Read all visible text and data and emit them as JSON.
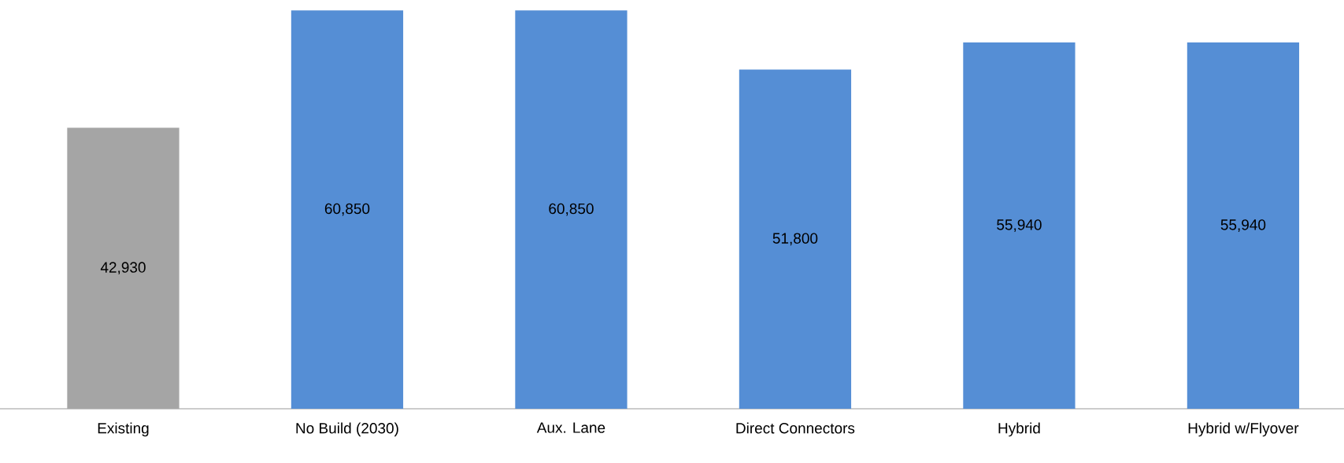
{
  "chart_data": {
    "type": "bar",
    "categories": [
      "Existing",
      "No Build (2030)",
      "Aux. Lane",
      "Direct Connectors",
      "Hybrid",
      "Hybrid w/Flyover"
    ],
    "values": [
      42930,
      60850,
      60850,
      51800,
      55940,
      55940
    ],
    "value_labels": [
      "42,930",
      "60,850",
      "60,850",
      "51,800",
      "55,940",
      "55,940"
    ],
    "colors": [
      "#a5a5a5",
      "#558ed5",
      "#558ed5",
      "#558ed5",
      "#558ed5",
      "#558ed5"
    ]
  }
}
